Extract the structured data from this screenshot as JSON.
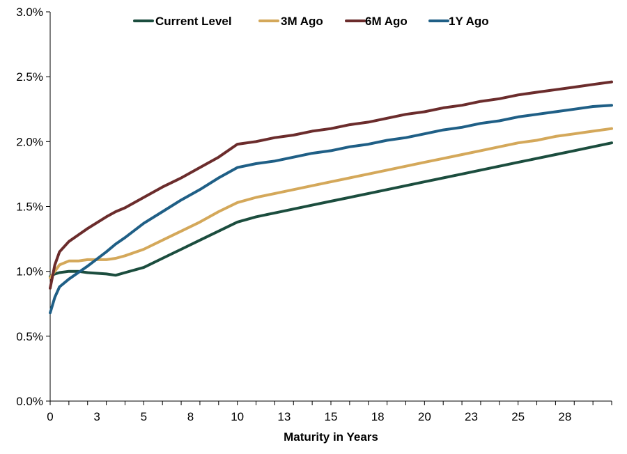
{
  "chart_data": {
    "type": "line",
    "title": "",
    "xlabel": "Maturity in Years",
    "ylabel": "",
    "xlim": [
      0,
      30
    ],
    "ylim": [
      0,
      3.0
    ],
    "x_tick_labels": [
      "0",
      "3",
      "5",
      "8",
      "10",
      "13",
      "15",
      "18",
      "20",
      "23",
      "25",
      "28"
    ],
    "x_tick_values": [
      0,
      2.5,
      5,
      7.5,
      10,
      12.5,
      15,
      17.5,
      20,
      22.5,
      25,
      27.5
    ],
    "y_tick_labels": [
      "0.0%",
      "0.5%",
      "1.0%",
      "1.5%",
      "2.0%",
      "2.5%",
      "3.0%"
    ],
    "y_tick_values": [
      0,
      0.5,
      1.0,
      1.5,
      2.0,
      2.5,
      3.0
    ],
    "legend_position": "top",
    "grid": false,
    "x": [
      0,
      0.25,
      0.5,
      1,
      1.5,
      2,
      3,
      3.5,
      4,
      5,
      6,
      7,
      8,
      9,
      10,
      11,
      12,
      13,
      14,
      15,
      16,
      17,
      18,
      19,
      20,
      21,
      22,
      23,
      24,
      25,
      26,
      27,
      28,
      29,
      30
    ],
    "series": [
      {
        "name": "Current Level",
        "color": "#1b4d3e",
        "values": [
          0.96,
          0.98,
          0.99,
          1.0,
          1.0,
          0.99,
          0.98,
          0.97,
          0.99,
          1.03,
          1.1,
          1.17,
          1.24,
          1.31,
          1.38,
          1.42,
          1.45,
          1.48,
          1.51,
          1.54,
          1.57,
          1.6,
          1.63,
          1.66,
          1.69,
          1.72,
          1.75,
          1.78,
          1.81,
          1.84,
          1.87,
          1.9,
          1.93,
          1.96,
          1.99
        ]
      },
      {
        "name": "3M Ago",
        "color": "#d4a85a",
        "values": [
          0.95,
          1.0,
          1.05,
          1.08,
          1.08,
          1.09,
          1.09,
          1.1,
          1.12,
          1.17,
          1.24,
          1.31,
          1.38,
          1.46,
          1.53,
          1.57,
          1.6,
          1.63,
          1.66,
          1.69,
          1.72,
          1.75,
          1.78,
          1.81,
          1.84,
          1.87,
          1.9,
          1.93,
          1.96,
          1.99,
          2.01,
          2.04,
          2.06,
          2.08,
          2.1
        ]
      },
      {
        "name": "6M Ago",
        "color": "#6b2c2c",
        "values": [
          0.87,
          1.05,
          1.15,
          1.23,
          1.28,
          1.33,
          1.42,
          1.46,
          1.49,
          1.57,
          1.65,
          1.72,
          1.8,
          1.88,
          1.98,
          2.0,
          2.03,
          2.05,
          2.08,
          2.1,
          2.13,
          2.15,
          2.18,
          2.21,
          2.23,
          2.26,
          2.28,
          2.31,
          2.33,
          2.36,
          2.38,
          2.4,
          2.42,
          2.44,
          2.46
        ]
      },
      {
        "name": "1Y Ago",
        "color": "#1f5f86",
        "values": [
          0.68,
          0.8,
          0.88,
          0.94,
          0.99,
          1.04,
          1.15,
          1.21,
          1.26,
          1.37,
          1.46,
          1.55,
          1.63,
          1.72,
          1.8,
          1.83,
          1.85,
          1.88,
          1.91,
          1.93,
          1.96,
          1.98,
          2.01,
          2.03,
          2.06,
          2.09,
          2.11,
          2.14,
          2.16,
          2.19,
          2.21,
          2.23,
          2.25,
          2.27,
          2.28
        ]
      }
    ]
  }
}
